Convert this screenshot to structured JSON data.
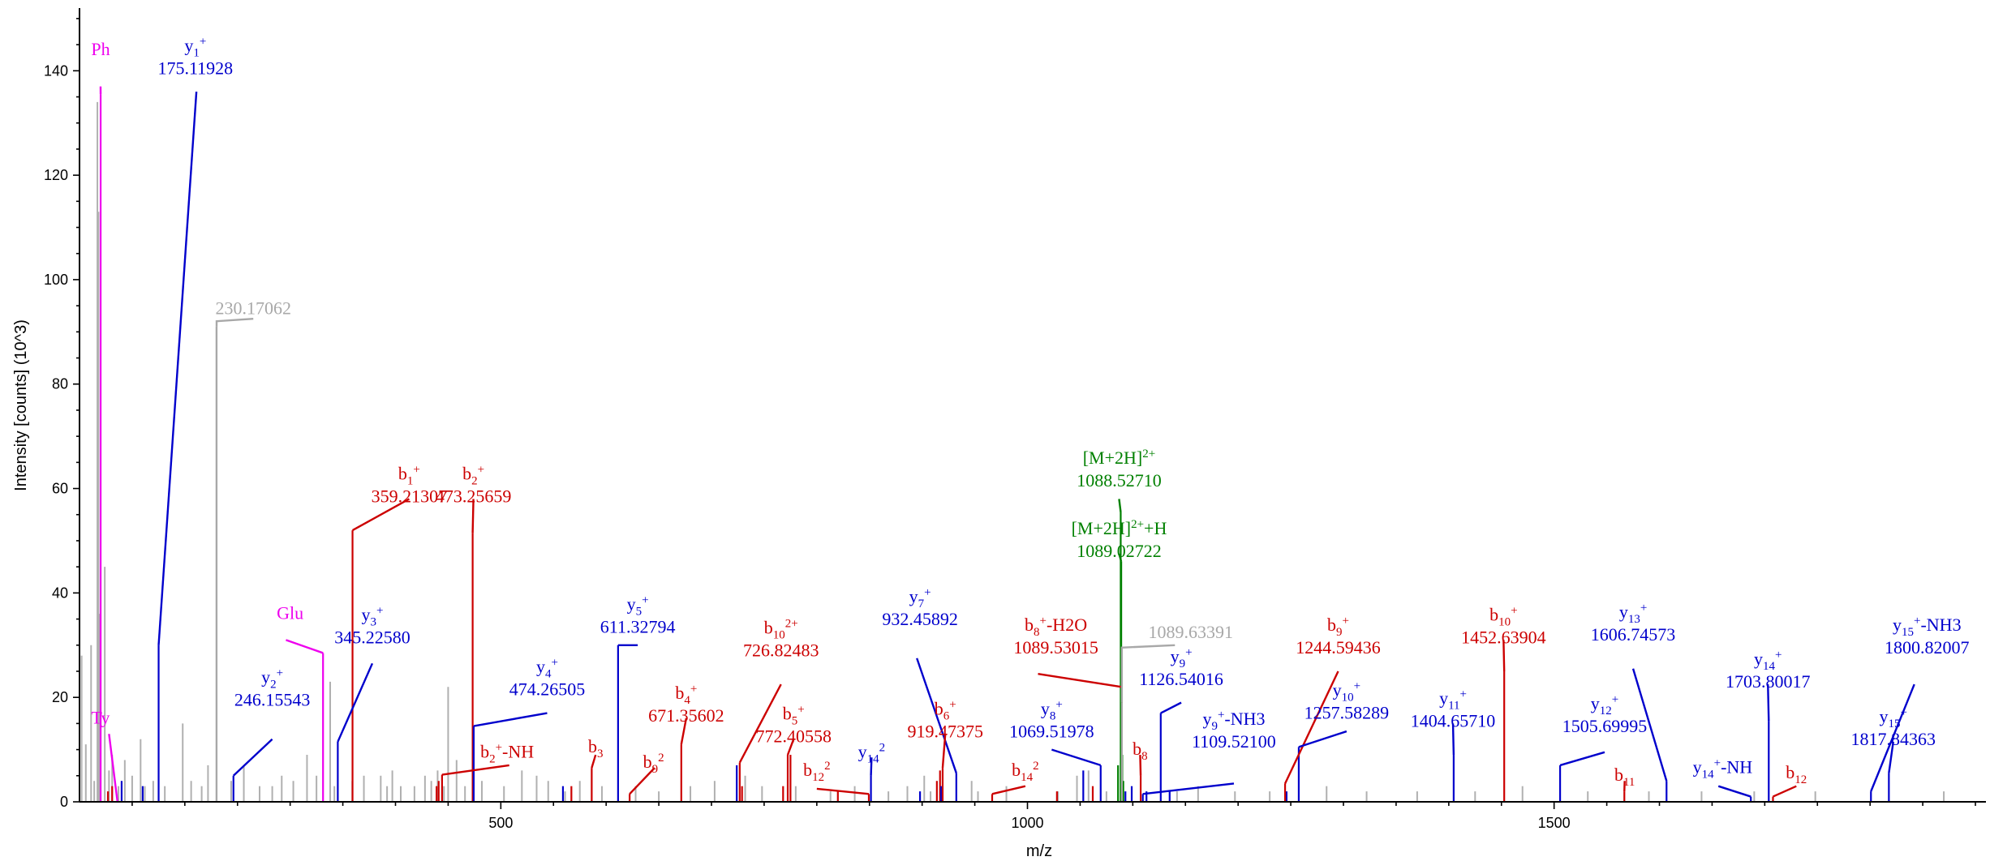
{
  "chart_data": {
    "type": "bar",
    "xlabel": "m/z",
    "ylabel": "Intensity [counts] (10^3)",
    "xlim": [
      100,
      1910
    ],
    "ylim": [
      0,
      152
    ],
    "xticks": [
      500,
      1000,
      1500
    ],
    "yticks": [
      0,
      20,
      40,
      60,
      80,
      100,
      120,
      140
    ],
    "colors": {
      "b": "#cc0000",
      "y": "#0000cc",
      "precursor": "#008000",
      "immonium": "#ee00ee",
      "unassigned": "#a8a8a8"
    },
    "annotations": [
      {
        "id": "Ph",
        "cls": "immonium",
        "mz": 120.08,
        "int": 135.5,
        "ion": "Ph",
        "value": "",
        "lx": 120,
        "ly": 143,
        "ax": 120,
        "ay": 137
      },
      {
        "id": "Ty",
        "cls": "immonium",
        "mz": 136.08,
        "int": 0,
        "ion": "Ty",
        "value": "",
        "lx": 120,
        "ly": 15,
        "ax": 128,
        "ay": 13
      },
      {
        "id": "y1",
        "cls": "y",
        "mz": 175.11928,
        "int": 30,
        "ion": "y",
        "sub": "1",
        "sup": "+",
        "value": "175.11928",
        "lx": 210,
        "ly": 140,
        "ax": 211,
        "ay": 136
      },
      {
        "id": "m230",
        "cls": "unassigned",
        "mz": 230.17062,
        "int": 91,
        "ion": "",
        "value": "230.17062",
        "lx": 265,
        "ly": 94,
        "ax": 265,
        "ay": 92.5
      },
      {
        "id": "y2",
        "cls": "y",
        "mz": 246.15543,
        "int": 5,
        "ion": "y",
        "sub": "2",
        "sup": "+",
        "value": "246.15543",
        "lx": 283,
        "ly": 19,
        "ax": 283,
        "ay": 12
      },
      {
        "id": "Glu",
        "cls": "immonium",
        "mz": 331.21838,
        "int": 28.5,
        "ion": "Glu",
        "value": "",
        "lx": 300,
        "ly": 35,
        "ax": 296,
        "ay": 31
      },
      {
        "id": "y3",
        "cls": "y",
        "mz": 345.2258,
        "int": 11.5,
        "ion": "y",
        "sub": "3",
        "sup": "+",
        "value": "345.22580",
        "lx": 378,
        "ly": 31,
        "ax": 378,
        "ay": 26.5
      },
      {
        "id": "b1",
        "cls": "b",
        "mz": 359.21307,
        "int": 52,
        "ion": "b",
        "sub": "1",
        "sup": "+",
        "value": "359.21307",
        "lx": 413,
        "ly": 58,
        "ax": 413,
        "ay": 58
      },
      {
        "id": "b2",
        "cls": "b",
        "mz": 473.25659,
        "int": 51.5,
        "ion": "b",
        "sub": "2",
        "sup": "+",
        "value": "473.25659",
        "lx": 474,
        "ly": 58,
        "ax": 474,
        "ay": 58
      },
      {
        "id": "b2nh",
        "cls": "b",
        "mz": 444.2,
        "int": 5.2,
        "ion": "b",
        "sub": "2",
        "sup": "+",
        "suffix": "-NH",
        "value": "",
        "lx": 506,
        "ly": 8.5,
        "ax": 508,
        "ay": 7
      },
      {
        "id": "y4",
        "cls": "y",
        "mz": 474.26505,
        "int": 14.5,
        "ion": "y",
        "sub": "4",
        "sup": "+",
        "value": "474.26505",
        "lx": 544,
        "ly": 21,
        "ax": 544,
        "ay": 17
      },
      {
        "id": "b3",
        "cls": "b",
        "mz": 586.3,
        "int": 6.5,
        "ion": "b",
        "sub": "3",
        "sup": "",
        "value": "",
        "lx": 590,
        "ly": 9.5,
        "ax": 590,
        "ay": 9
      },
      {
        "id": "y5",
        "cls": "y",
        "mz": 611.32794,
        "int": 30,
        "ion": "y",
        "sub": "5",
        "sup": "+",
        "value": "611.32794",
        "lx": 630,
        "ly": 33,
        "ax": 630,
        "ay": 30
      },
      {
        "id": "b9_2",
        "cls": "b",
        "mz": 622.3,
        "int": 1.5,
        "ion": "b",
        "sub": "9",
        "sup": "2",
        "value": "",
        "lx": 645,
        "ly": 6.5,
        "ax": 646,
        "ay": 6.5
      },
      {
        "id": "b4",
        "cls": "b",
        "mz": 671.35602,
        "int": 11,
        "ion": "b",
        "sub": "4",
        "sup": "+",
        "value": "671.35602",
        "lx": 676,
        "ly": 16,
        "ax": 676,
        "ay": 16
      },
      {
        "id": "b10_2",
        "cls": "b",
        "mz": 726.82483,
        "int": 7.5,
        "ion": "b",
        "sub": "10",
        "sup": "2+",
        "value": "726.82483",
        "lx": 766,
        "ly": 28.5,
        "ax": 766,
        "ay": 22.5
      },
      {
        "id": "b5",
        "cls": "b",
        "mz": 772.40558,
        "int": 9,
        "ion": "b",
        "sub": "5",
        "sup": "+",
        "value": "772.40558",
        "lx": 778,
        "ly": 12,
        "ax": 778,
        "ay": 12
      },
      {
        "id": "b12_2",
        "cls": "b",
        "mz": 849.4,
        "int": 1.5,
        "ion": "b",
        "sub": "12",
        "sup": "2",
        "value": "",
        "lx": 800,
        "ly": 5,
        "ax": 800,
        "ay": 2.5
      },
      {
        "id": "y14_2",
        "cls": "y",
        "mz": 851.4,
        "int": 5,
        "ion": "y",
        "sub": "14",
        "sup": "2",
        "value": "",
        "lx": 852,
        "ly": 8.5,
        "ax": 852,
        "ay": 8.5
      },
      {
        "id": "y7",
        "cls": "y",
        "mz": 932.45892,
        "int": 5.5,
        "ion": "y",
        "sub": "7",
        "sup": "+",
        "value": "932.45892",
        "lx": 898,
        "ly": 34.5,
        "ax": 895,
        "ay": 27.5
      },
      {
        "id": "b6",
        "cls": "b",
        "mz": 919.47375,
        "int": 6.5,
        "ion": "b",
        "sub": "6",
        "sup": "+",
        "value": "919.47375",
        "lx": 922,
        "ly": 13,
        "ax": 922,
        "ay": 13
      },
      {
        "id": "b14_2",
        "cls": "b",
        "mz": 966.5,
        "int": 1.5,
        "ion": "b",
        "sub": "14",
        "sup": "2",
        "value": "",
        "lx": 998,
        "ly": 5,
        "ax": 998,
        "ay": 3
      },
      {
        "id": "y8",
        "cls": "y",
        "mz": 1069.51978,
        "int": 7,
        "ion": "y",
        "sub": "8",
        "sup": "+",
        "value": "1069.51978",
        "lx": 1023,
        "ly": 13,
        "ax": 1023,
        "ay": 10
      },
      {
        "id": "b8h2o",
        "cls": "b",
        "mz": 1089.53015,
        "int": 22,
        "ion": "b",
        "sub": "8",
        "sup": "+",
        "suffix": "-H2O",
        "value": "1089.53015",
        "lx": 1027,
        "ly": 29,
        "ax": 1010,
        "ay": 24.5
      },
      {
        "id": "mh2",
        "cls": "precursor",
        "mz": 1088.5271,
        "int": 55.5,
        "ion": "[M+2H]",
        "sup": "2+",
        "value": "1088.52710",
        "lx": 1087,
        "ly": 61,
        "ax": 1087,
        "ay": 58
      },
      {
        "id": "mh2h",
        "cls": "precursor",
        "mz": 1089.02722,
        "int": 46,
        "ion": "[M+2H]",
        "sup": "2+",
        "suffix": "+H",
        "value": "1089.02722",
        "lx": 1087,
        "ly": 47.5,
        "ax": 1087,
        "ay": 47.5
      },
      {
        "id": "m1089",
        "cls": "unassigned",
        "mz": 1089.63391,
        "int": 19,
        "ion": "",
        "value": "1089.63391",
        "lx": 1155,
        "ly": 32,
        "ax": 1140,
        "ay": 30
      },
      {
        "id": "b8",
        "cls": "b",
        "mz": 1107.5,
        "int": 5,
        "ion": "b",
        "sub": "8",
        "sup": "",
        "value": "",
        "lx": 1107,
        "ly": 9,
        "ax": 1107,
        "ay": 9
      },
      {
        "id": "y9",
        "cls": "y",
        "mz": 1126.54016,
        "int": 17,
        "ion": "y",
        "sub": "9",
        "sup": "+",
        "value": "1126.54016",
        "lx": 1146,
        "ly": 23,
        "ax": 1146,
        "ay": 19
      },
      {
        "id": "y9nh3",
        "cls": "y",
        "mz": 1109.521,
        "int": 1.5,
        "ion": "y",
        "sub": "9",
        "sup": "+",
        "suffix": "-NH3",
        "value": "1109.52100",
        "lx": 1196,
        "ly": 11,
        "ax": 1196,
        "ay": 3.5
      },
      {
        "id": "b9",
        "cls": "b",
        "mz": 1244.59436,
        "int": 3.5,
        "ion": "b",
        "sub": "9",
        "sup": "+",
        "value": "1244.59436",
        "lx": 1295,
        "ly": 29,
        "ax": 1295,
        "ay": 25
      },
      {
        "id": "y10",
        "cls": "y",
        "mz": 1257.58289,
        "int": 10.5,
        "ion": "y",
        "sub": "10",
        "sup": "+",
        "value": "1257.58289",
        "lx": 1303,
        "ly": 16.5,
        "ax": 1303,
        "ay": 13.5
      },
      {
        "id": "y11",
        "cls": "y",
        "mz": 1404.6571,
        "int": 9,
        "ion": "y",
        "sub": "11",
        "sup": "+",
        "value": "1404.65710",
        "lx": 1404,
        "ly": 15,
        "ax": 1404,
        "ay": 15
      },
      {
        "id": "b10",
        "cls": "b",
        "mz": 1452.63904,
        "int": 25,
        "ion": "b",
        "sub": "10",
        "sup": "+",
        "value": "1452.63904",
        "lx": 1452,
        "ly": 31,
        "ax": 1452,
        "ay": 31
      },
      {
        "id": "y12",
        "cls": "y",
        "mz": 1505.69995,
        "int": 7,
        "ion": "y",
        "sub": "12",
        "sup": "+",
        "value": "1505.69995",
        "lx": 1548,
        "ly": 14,
        "ax": 1548,
        "ay": 9.5
      },
      {
        "id": "b11",
        "cls": "b",
        "mz": 1566.7,
        "int": 2,
        "ion": "b",
        "sub": "11",
        "sup": "",
        "value": "",
        "lx": 1567,
        "ly": 4,
        "ax": 1567,
        "ay": 4
      },
      {
        "id": "y13",
        "cls": "y",
        "mz": 1606.74573,
        "int": 4,
        "ion": "y",
        "sub": "13",
        "sup": "+",
        "value": "1606.74573",
        "lx": 1575,
        "ly": 31.5,
        "ax": 1575,
        "ay": 25.5
      },
      {
        "id": "y14nh",
        "cls": "y",
        "mz": 1686.8,
        "int": 1,
        "ion": "y",
        "sub": "14",
        "sup": "+",
        "suffix": "-NH",
        "value": "",
        "lx": 1660,
        "ly": 5.5,
        "ax": 1656,
        "ay": 3
      },
      {
        "id": "y14",
        "cls": "y",
        "mz": 1703.80017,
        "int": 15.5,
        "ion": "y",
        "sub": "14",
        "sup": "+",
        "value": "1703.80017",
        "lx": 1703,
        "ly": 22.5,
        "ax": 1703,
        "ay": 22.5
      },
      {
        "id": "b12",
        "cls": "b",
        "mz": 1707.8,
        "int": 1,
        "ion": "b",
        "sub": "12",
        "sup": "",
        "value": "",
        "lx": 1730,
        "ly": 4.5,
        "ax": 1730,
        "ay": 3
      },
      {
        "id": "y15nh3",
        "cls": "y",
        "mz": 1800.82007,
        "int": 2,
        "ion": "y",
        "sub": "15",
        "sup": "+",
        "suffix": "-NH3",
        "value": "1800.82007",
        "lx": 1854,
        "ly": 29,
        "ax": 1842,
        "ay": 22.5
      },
      {
        "id": "y15",
        "cls": "y",
        "mz": 1817.84363,
        "int": 5.5,
        "ion": "y",
        "sub": "15",
        "sup": "+",
        "value": "1817.84363",
        "lx": 1822,
        "ly": 11.5,
        "ax": 1822,
        "ay": 11.5
      }
    ],
    "background_peaks": [
      [
        102,
        28
      ],
      [
        106,
        11
      ],
      [
        111,
        30
      ],
      [
        114,
        4
      ],
      [
        117,
        134
      ],
      [
        118,
        113
      ],
      [
        119,
        36
      ],
      [
        124,
        45
      ],
      [
        128,
        6
      ],
      [
        131,
        9
      ],
      [
        137,
        3
      ],
      [
        143,
        8
      ],
      [
        150,
        5
      ],
      [
        158,
        12
      ],
      [
        162,
        3
      ],
      [
        170,
        4
      ],
      [
        181,
        3
      ],
      [
        198,
        15
      ],
      [
        206,
        4
      ],
      [
        216,
        3
      ],
      [
        222,
        7
      ],
      [
        230,
        91
      ],
      [
        244,
        4
      ],
      [
        256,
        7
      ],
      [
        271,
        3
      ],
      [
        283,
        3
      ],
      [
        292,
        5
      ],
      [
        303,
        4
      ],
      [
        316,
        9
      ],
      [
        325,
        5
      ],
      [
        338,
        23
      ],
      [
        342,
        3
      ],
      [
        359,
        4
      ],
      [
        370,
        5
      ],
      [
        386,
        5
      ],
      [
        392,
        3
      ],
      [
        397,
        6
      ],
      [
        405,
        3
      ],
      [
        418,
        3
      ],
      [
        428,
        5
      ],
      [
        434,
        4
      ],
      [
        440,
        6
      ],
      [
        446,
        3
      ],
      [
        450,
        22
      ],
      [
        458,
        8
      ],
      [
        466,
        3
      ],
      [
        482,
        4
      ],
      [
        503,
        3
      ],
      [
        520,
        6
      ],
      [
        534,
        5
      ],
      [
        545,
        4
      ],
      [
        561,
        2
      ],
      [
        575,
        4
      ],
      [
        596,
        3
      ],
      [
        628,
        3
      ],
      [
        650,
        2
      ],
      [
        680,
        3
      ],
      [
        703,
        4
      ],
      [
        732,
        5
      ],
      [
        748,
        3
      ],
      [
        780,
        3
      ],
      [
        813,
        2
      ],
      [
        836,
        3
      ],
      [
        868,
        2
      ],
      [
        886,
        3
      ],
      [
        902,
        5
      ],
      [
        908,
        2
      ],
      [
        947,
        4
      ],
      [
        953,
        2
      ],
      [
        980,
        3
      ],
      [
        1029,
        2
      ],
      [
        1047,
        5
      ],
      [
        1058,
        6
      ],
      [
        1075,
        2
      ],
      [
        1090,
        4
      ],
      [
        1142,
        2
      ],
      [
        1162,
        3
      ],
      [
        1197,
        2
      ],
      [
        1230,
        2
      ],
      [
        1284,
        3
      ],
      [
        1322,
        2
      ],
      [
        1370,
        2
      ],
      [
        1425,
        2
      ],
      [
        1470,
        3
      ],
      [
        1532,
        2
      ],
      [
        1590,
        2
      ],
      [
        1640,
        2
      ],
      [
        1690,
        2
      ],
      [
        1748,
        2
      ],
      [
        1870,
        2
      ]
    ],
    "extra_peaks": [
      [
        "b",
        127,
        2
      ],
      [
        "b",
        131,
        3
      ],
      [
        "b",
        439,
        3
      ],
      [
        "b",
        441,
        4
      ],
      [
        "b",
        567,
        3
      ],
      [
        "b",
        729,
        3
      ],
      [
        "b",
        768,
        3
      ],
      [
        "b",
        775,
        9
      ],
      [
        "b",
        820,
        2
      ],
      [
        "b",
        914,
        4
      ],
      [
        "b",
        917,
        6
      ],
      [
        "b",
        1028,
        2
      ],
      [
        "b",
        1062,
        3
      ],
      [
        "y",
        140,
        4
      ],
      [
        "y",
        160,
        3
      ],
      [
        "y",
        559,
        3
      ],
      [
        "y",
        724,
        7
      ],
      [
        "y",
        898,
        2
      ],
      [
        "y",
        918,
        3
      ],
      [
        "y",
        1053,
        6
      ],
      [
        "y",
        1093,
        2
      ],
      [
        "y",
        1099,
        3
      ],
      [
        "y",
        1113,
        2
      ],
      [
        "y",
        1135,
        2
      ],
      [
        "y",
        1246,
        2
      ],
      [
        "precursor",
        1086,
        7
      ],
      [
        "precursor",
        1090,
        9
      ],
      [
        "precursor",
        1091,
        4
      ]
    ]
  }
}
